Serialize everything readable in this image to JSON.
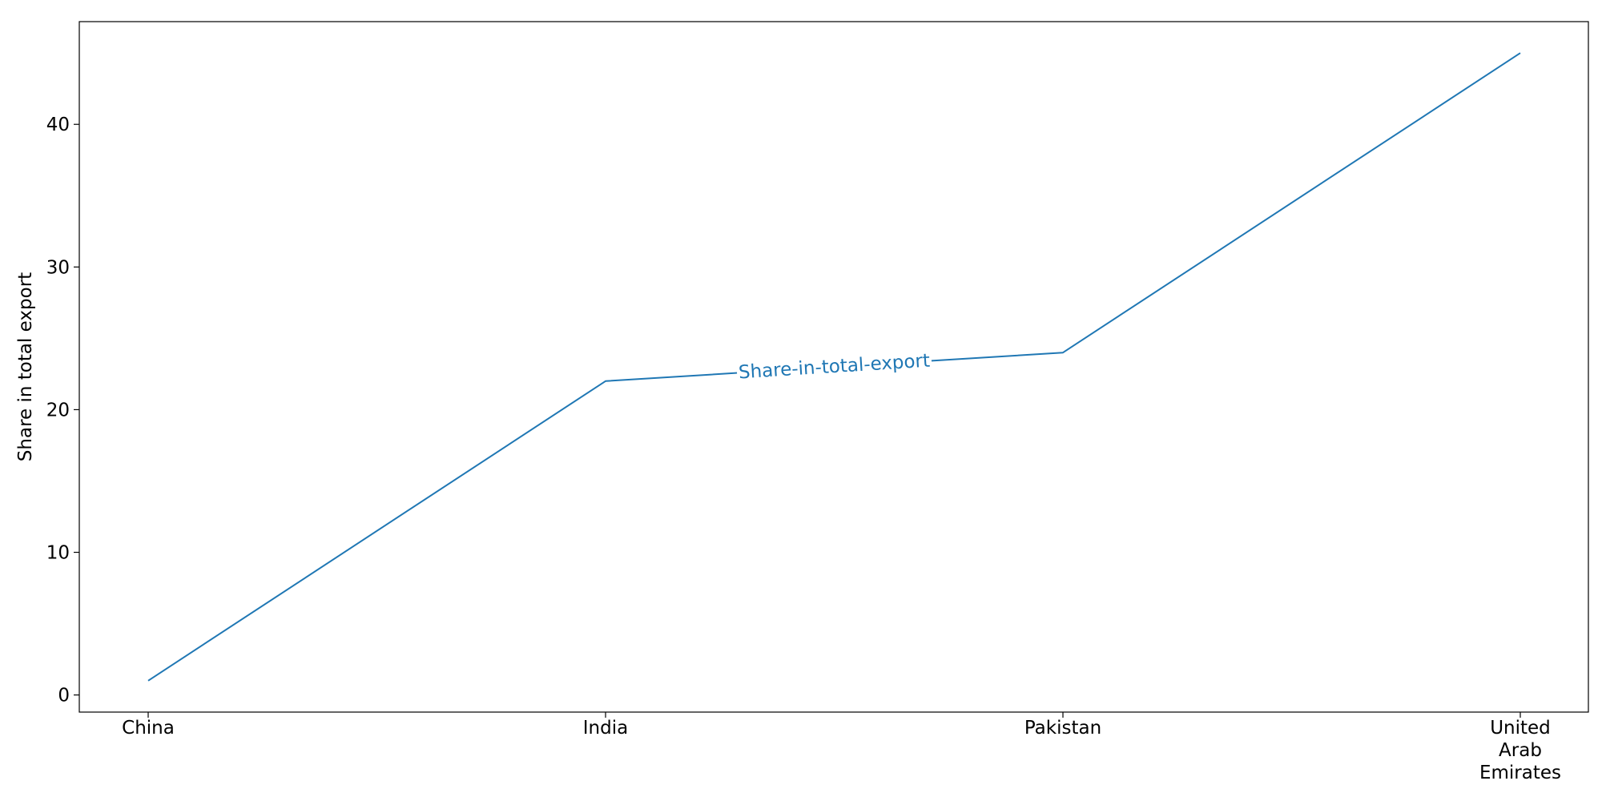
{
  "chart_data": {
    "type": "line",
    "categories": [
      "China",
      "India",
      "Pakistan",
      "United Arab Emirates"
    ],
    "category_label_lines": [
      [
        "China"
      ],
      [
        "India"
      ],
      [
        "Pakistan"
      ],
      [
        "United",
        "Arab",
        "Emirates"
      ]
    ],
    "series": [
      {
        "name": "Share-in-total-export",
        "values": [
          1,
          22,
          24,
          45
        ],
        "color": "#1f77b4"
      }
    ],
    "title": "",
    "xlabel": "",
    "ylabel": "Share in total export",
    "yticks": [
      0,
      10,
      20,
      30,
      40
    ],
    "ylim": [
      -1.2,
      47.2
    ],
    "grid": false,
    "legend": "inline-label"
  }
}
